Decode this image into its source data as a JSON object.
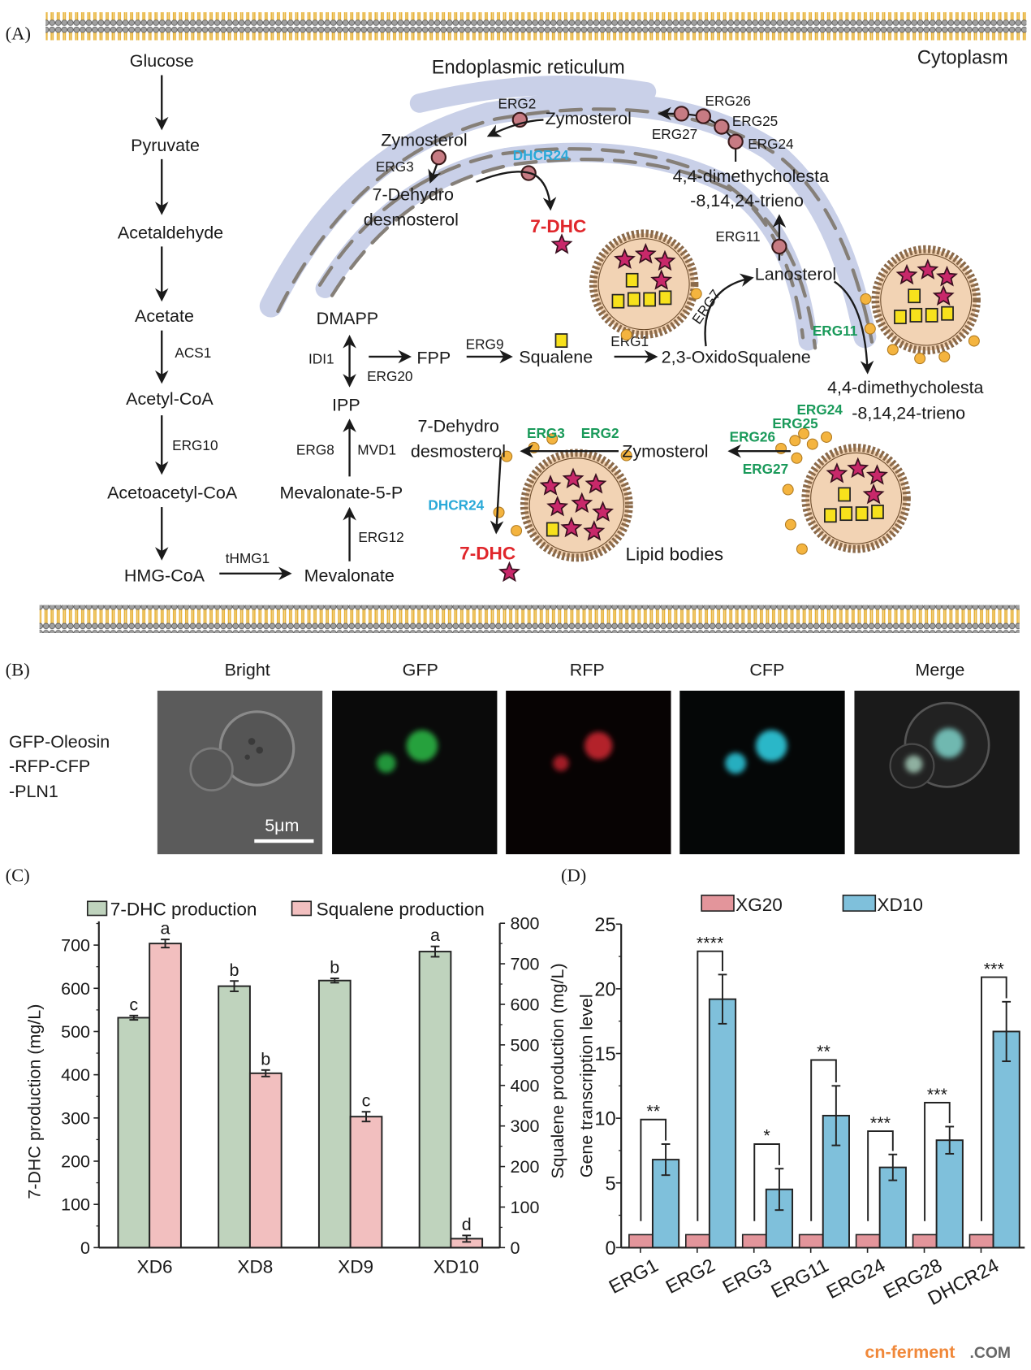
{
  "panel_labels": {
    "a": "(A)",
    "b": "(B)",
    "c": "(C)",
    "d": "(D)"
  },
  "pathway": {
    "compartments": {
      "er": "Endoplasmic reticulum",
      "cytoplasm": "Cytoplasm",
      "lipid_bodies": "Lipid bodies"
    },
    "left_column": [
      "Glucose",
      "Pyruvate",
      "Acetaldehyde",
      "Acetate",
      "Acetyl-CoA",
      "Acetoacetyl-CoA",
      "HMG-CoA"
    ],
    "left_enzymes": {
      "acs1": "ACS1",
      "erg10": "ERG10",
      "thmg1": "tHMG1"
    },
    "mevalonate": {
      "mevalonate": "Mevalonate",
      "erg12": "ERG12",
      "mev5p": "Mevalonate-5-P",
      "erg8": "ERG8",
      "mvd1": "MVD1",
      "ipp": "IPP",
      "idi1": "IDI1",
      "erg20": "ERG20",
      "dmapp": "DMAPP",
      "fpp": "FPP",
      "erg9": "ERG9",
      "squalene": "Squalene",
      "erg1": "ERG1",
      "oxidosqualene": "2,3-OxidoSqualene",
      "erg7": "ERG7",
      "lanosterol": "Lanosterol"
    },
    "er_route": {
      "erg11": "ERG11",
      "dimethyl_1": "4,4-dimethycholesta",
      "dimethyl_2": "-8,14,24-trieno",
      "erg24": "ERG24",
      "erg25": "ERG25",
      "erg26": "ERG26",
      "erg27": "ERG27",
      "zymosterol_a": "Zymosterol",
      "erg2": "ERG2",
      "zymosterol_b": "Zymosterol",
      "erg3": "ERG3",
      "dehydro_1": "7-Dehydro",
      "dehydro_2": "desmosterol",
      "dhcr24": "DHCR24",
      "product": "7-DHC"
    },
    "lb_route": {
      "erg11": "ERG11",
      "dimethyl_1": "4,4-dimethycholesta",
      "dimethyl_2": "-8,14,24-trieno",
      "erg24": "ERG24",
      "erg25": "ERG25",
      "erg26": "ERG26",
      "erg27": "ERG27",
      "zymosterol": "Zymosterol",
      "erg3": "ERG3",
      "erg2": "ERG2",
      "dehydro_1": "7-Dehydro",
      "dehydro_2": "desmosterol",
      "dhcr24": "DHCR24",
      "product": "7-DHC"
    },
    "colors": {
      "er_enzyme": "#c77b83",
      "lb_enzyme": "#f4b43f",
      "lb_label": "#1a9a5a",
      "dhcr24": "#2aa9d8",
      "product": "#e0262b"
    }
  },
  "microscopy": {
    "row_label": [
      "GFP-Oleosin",
      "-RFP-CFP",
      "-PLN1"
    ],
    "columns": [
      "Bright",
      "GFP",
      "RFP",
      "CFP",
      "Merge"
    ],
    "scale_bar": "5μm"
  },
  "chart_data": [
    {
      "type": "bar",
      "panel": "C",
      "categories": [
        "XD6",
        "XD8",
        "XD9",
        "XD10"
      ],
      "series": [
        {
          "name": "7-DHC production",
          "axis": "left",
          "color": "#bfd3bd",
          "values": [
            532,
            605,
            618,
            685
          ],
          "errors": [
            5,
            12,
            5,
            12
          ],
          "letters": [
            "c",
            "b",
            "b",
            "a"
          ]
        },
        {
          "name": "Squalene production",
          "axis": "right",
          "color": "#f2bfbf",
          "values": [
            750,
            430,
            323,
            22
          ],
          "errors": [
            10,
            8,
            12,
            8
          ],
          "letters": [
            "a",
            "b",
            "c",
            "d"
          ]
        }
      ],
      "ylabel": "7-DHC production (mg/L)",
      "ylabel_right": "Squalene production (mg/L)",
      "ylim": [
        0,
        755
      ],
      "ylim_right": [
        0,
        800
      ],
      "yticks": [
        0,
        100,
        200,
        300,
        400,
        500,
        600,
        700
      ],
      "yticks_right": [
        0,
        100,
        200,
        300,
        400,
        500,
        600,
        700,
        800
      ],
      "legend": "top",
      "grid": false
    },
    {
      "type": "bar",
      "panel": "D",
      "categories": [
        "ERG1",
        "ERG2",
        "ERG3",
        "ERG11",
        "ERG24",
        "ERG28",
        "DHCR24"
      ],
      "series": [
        {
          "name": "XG20",
          "color": "#e3959b",
          "values": [
            1,
            1,
            1,
            1,
            1,
            1,
            1
          ]
        },
        {
          "name": "XD10",
          "color": "#7fc0db",
          "values": [
            6.8,
            19.2,
            4.5,
            10.2,
            6.2,
            8.3,
            16.7
          ],
          "errors": [
            1.2,
            1.9,
            1.6,
            2.3,
            1.0,
            1.05,
            2.3
          ]
        }
      ],
      "significance": [
        "**",
        "****",
        "*",
        "**",
        "***",
        "***",
        "***"
      ],
      "ylabel": "Gene transcription level",
      "ylim": [
        0,
        25
      ],
      "yticks": [
        0,
        5,
        10,
        15,
        20,
        25
      ],
      "legend": "top",
      "grid": false
    }
  ],
  "watermark": {
    "main": "cn-ferment",
    "suffix": ".COM"
  }
}
